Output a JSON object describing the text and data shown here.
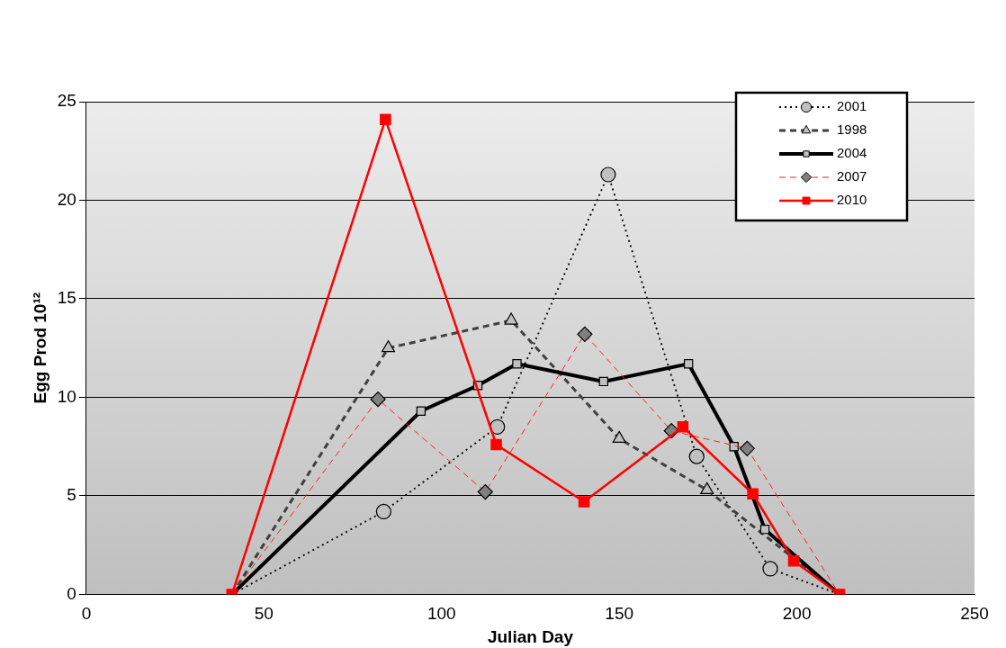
{
  "chart_data": {
    "type": "line",
    "xlabel": "Julian Day",
    "ylabel": "Egg Prod 10¹²",
    "xlim": [
      0,
      250
    ],
    "xticks": [
      0,
      50,
      100,
      150,
      200,
      250
    ],
    "ylim": [
      0,
      25
    ],
    "yticks": [
      0,
      5,
      10,
      15,
      20,
      25
    ],
    "grid": "y",
    "legend": "top right",
    "series": [
      {
        "name": "2001",
        "color": "#000000",
        "marker": "circle",
        "line_style": "dotted",
        "x": [
          41,
          83.7,
          115.7,
          146.9,
          171.8,
          192.5,
          212
        ],
        "values": [
          0,
          4.2,
          8.5,
          21.3,
          7.0,
          1.3,
          0
        ]
      },
      {
        "name": "1998",
        "color": "#404040",
        "marker": "triangle",
        "line_style": "dashed",
        "x": [
          41,
          85,
          119.6,
          150,
          174.7,
          212
        ],
        "values": [
          0,
          12.5,
          13.9,
          7.9,
          5.3,
          0
        ]
      },
      {
        "name": "2004",
        "color": "#000000",
        "marker": "square",
        "line_style": "solid",
        "x": [
          41,
          94.2,
          110.2,
          121.2,
          145.6,
          169.5,
          182.3,
          191,
          212
        ],
        "values": [
          0,
          9.3,
          10.6,
          11.7,
          10.8,
          11.7,
          7.5,
          3.3,
          0
        ]
      },
      {
        "name": "2007",
        "color": "#ff2020",
        "marker": "diamond",
        "line_style": "dashed",
        "x": [
          41,
          82.1,
          112.3,
          140.3,
          164.7,
          186,
          212
        ],
        "values": [
          0,
          9.9,
          5.2,
          13.2,
          8.3,
          7.4,
          0
        ]
      },
      {
        "name": "2010",
        "color": "#ff0000",
        "marker": "square",
        "line_style": "solid",
        "x": [
          41,
          84.2,
          115.4,
          140.1,
          167.9,
          187.6,
          199.1,
          212
        ],
        "values": [
          0,
          24.1,
          7.6,
          4.7,
          8.5,
          5.1,
          1.7,
          0
        ]
      }
    ]
  }
}
